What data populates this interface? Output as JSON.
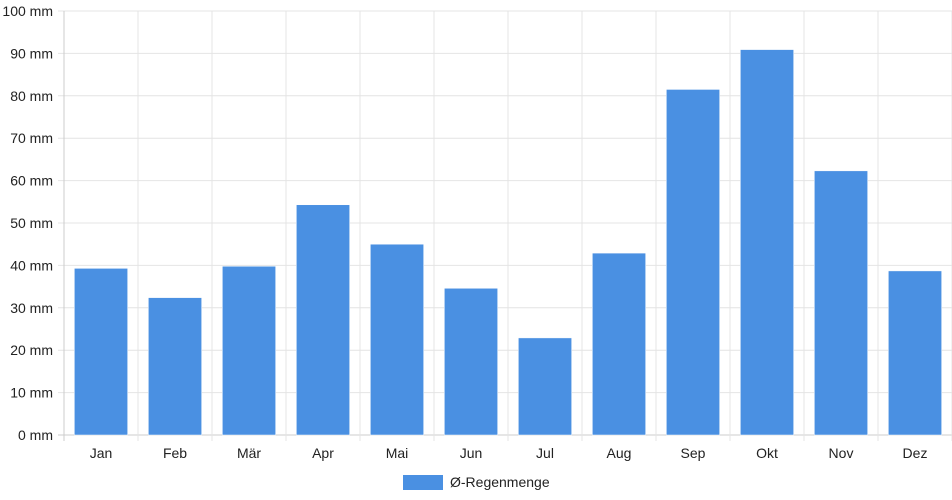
{
  "chart_data": {
    "type": "bar",
    "title": "",
    "xlabel": "",
    "ylabel": "",
    "categories": [
      "Jan",
      "Feb",
      "Mär",
      "Apr",
      "Mai",
      "Jun",
      "Jul",
      "Aug",
      "Sep",
      "Okt",
      "Nov",
      "Dez"
    ],
    "series": [
      {
        "name": "Ø-Regenmenge",
        "color": "#4a90e2",
        "values": [
          39.3,
          32.4,
          39.8,
          54.3,
          45.0,
          34.6,
          22.9,
          42.9,
          81.5,
          90.9,
          62.3,
          38.7
        ]
      }
    ],
    "ylim": [
      0,
      100
    ],
    "yticks": [
      "0 mm",
      "10 mm",
      "20 mm",
      "30 mm",
      "40 mm",
      "50 mm",
      "60 mm",
      "70 mm",
      "80 mm",
      "90 mm",
      "100 mm"
    ],
    "grid": true,
    "legend_position": "bottom"
  }
}
